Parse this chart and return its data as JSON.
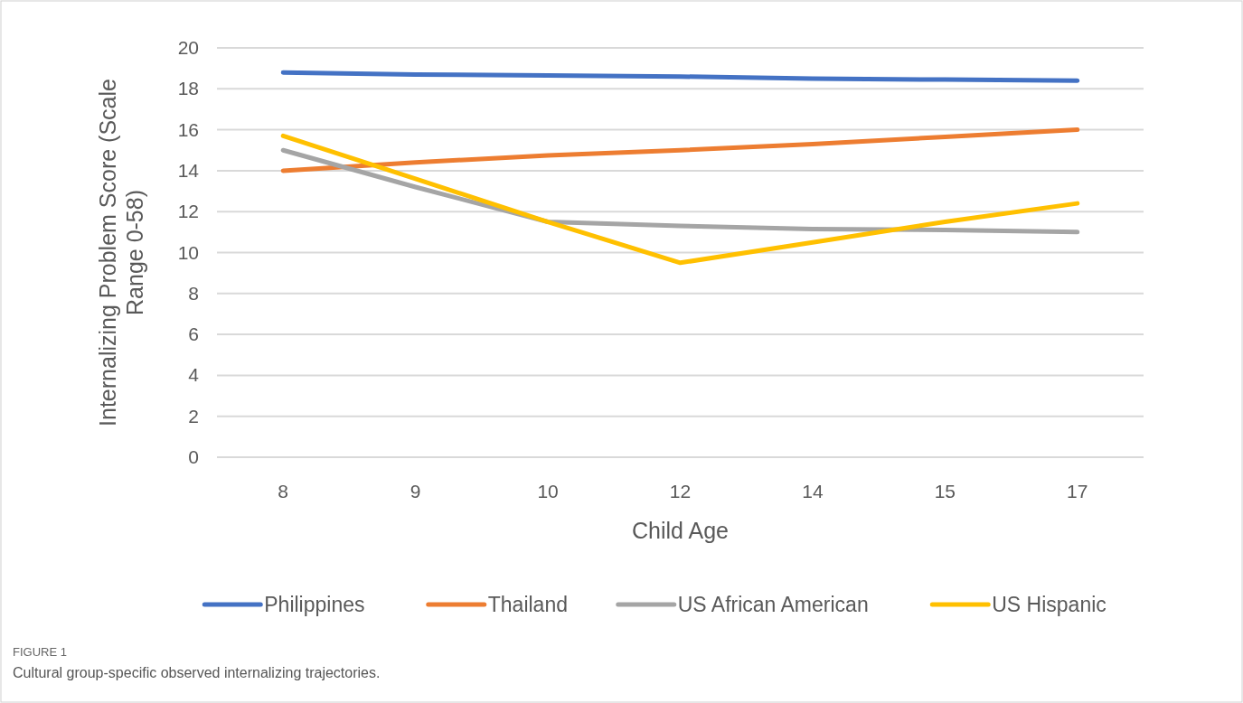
{
  "chart_data": {
    "type": "line",
    "xlabel": "Child Age",
    "ylabel": "Internalizing Problem Score (Scale Range 0-58)",
    "categories": [
      "8",
      "9",
      "10",
      "12",
      "14",
      "15",
      "17"
    ],
    "series": [
      {
        "name": "Philippines",
        "color": "#4472c4",
        "values": [
          18.8,
          18.7,
          18.65,
          18.6,
          18.5,
          18.45,
          18.4
        ]
      },
      {
        "name": "Thailand",
        "color": "#ed7d31",
        "values": [
          14.0,
          14.4,
          14.75,
          15.0,
          15.3,
          15.65,
          16.0
        ]
      },
      {
        "name": "US African American",
        "color": "#a5a5a5",
        "values": [
          15.0,
          13.2,
          11.5,
          11.3,
          11.15,
          11.1,
          11.0
        ]
      },
      {
        "name": "US Hispanic",
        "color": "#ffc000",
        "values": [
          15.7,
          13.6,
          11.5,
          9.5,
          10.5,
          11.5,
          12.4
        ]
      }
    ],
    "ylim": [
      0,
      20
    ],
    "yticks": [
      0,
      2,
      4,
      6,
      8,
      10,
      12,
      14,
      16,
      18,
      20
    ],
    "grid": "y",
    "legend": "bottom",
    "marker": "none",
    "line_style": "solid",
    "annotations": [
      "FIGURE 1",
      "Cultural group-specific observed internalizing trajectories."
    ]
  }
}
